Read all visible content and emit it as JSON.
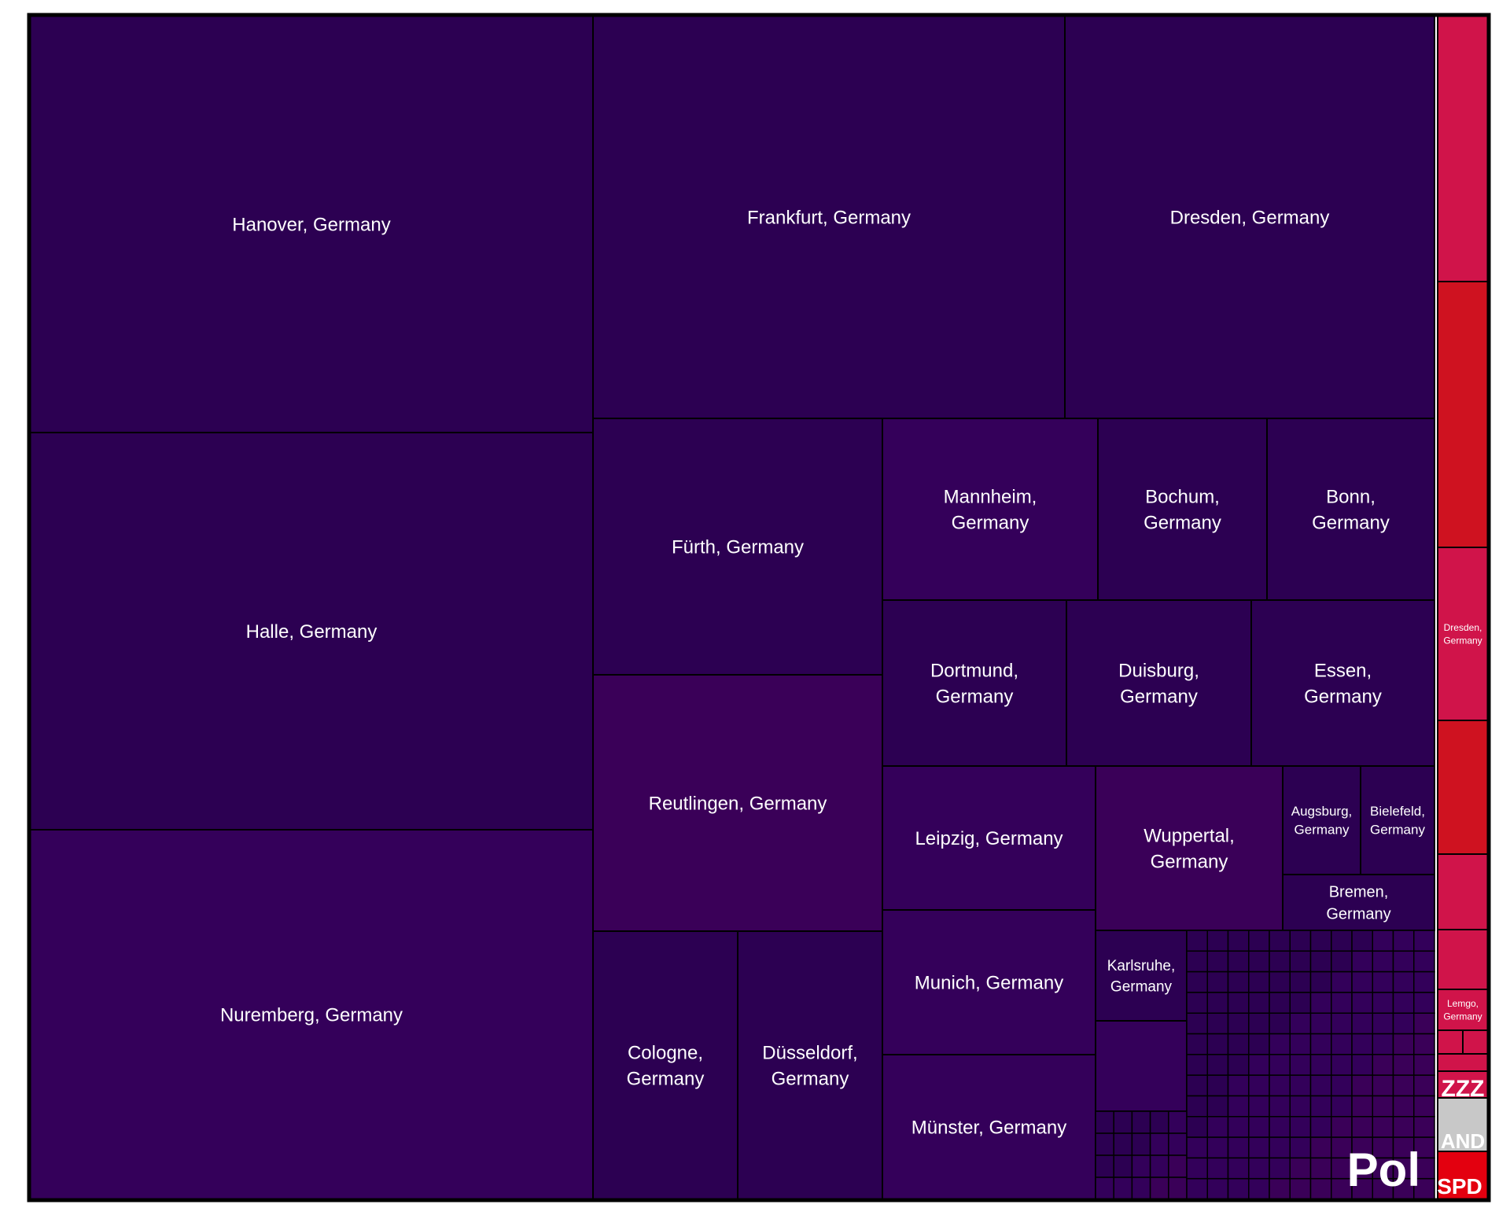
{
  "chart_data": {
    "type": "treemap",
    "colors": {
      "Pol_deep": "#2c0052",
      "Pol_mid": "#34005a",
      "Pol_light": "#3a0058",
      "ZZZ": "#d0144a",
      "ZZZ_alt": "#cf1220",
      "AND": "#c8c8c8",
      "SPD": "#e3000f",
      "border": "#000000"
    },
    "groups": [
      {
        "party": "Pol",
        "label": "Pol",
        "cells": [
          {
            "label": "Hanover, Germany"
          },
          {
            "label": "Halle, Germany"
          },
          {
            "label": "Nuremberg, Germany"
          },
          {
            "label": "Frankfurt, Germany"
          },
          {
            "label": "Dresden, Germany"
          },
          {
            "label": "Fürth, Germany"
          },
          {
            "label": "Reutlingen, Germany"
          },
          {
            "label": "Cologne, Germany"
          },
          {
            "label": "Düsseldorf, Germany"
          },
          {
            "label": "Mannheim, Germany"
          },
          {
            "label": "Bochum, Germany"
          },
          {
            "label": "Bonn, Germany"
          },
          {
            "label": "Dortmund, Germany"
          },
          {
            "label": "Duisburg, Germany"
          },
          {
            "label": "Essen, Germany"
          },
          {
            "label": "Leipzig, Germany"
          },
          {
            "label": "Wuppertal, Germany"
          },
          {
            "label": "Augsburg, Germany"
          },
          {
            "label": "Bielefeld, Germany"
          },
          {
            "label": "Bremen, Germany"
          },
          {
            "label": "Munich, Germany"
          },
          {
            "label": "Karlsruhe, Germany"
          },
          {
            "label": "Münster, Germany"
          }
        ]
      },
      {
        "party": "ZZZ",
        "label": "ZZZ",
        "cells": [
          {
            "label": "Dresden, Germany"
          },
          {
            "label": "Lemgo, Germany"
          }
        ]
      },
      {
        "party": "AND",
        "label": "AND",
        "cells": []
      },
      {
        "party": "SPD",
        "label": "SPD",
        "cells": []
      }
    ]
  }
}
